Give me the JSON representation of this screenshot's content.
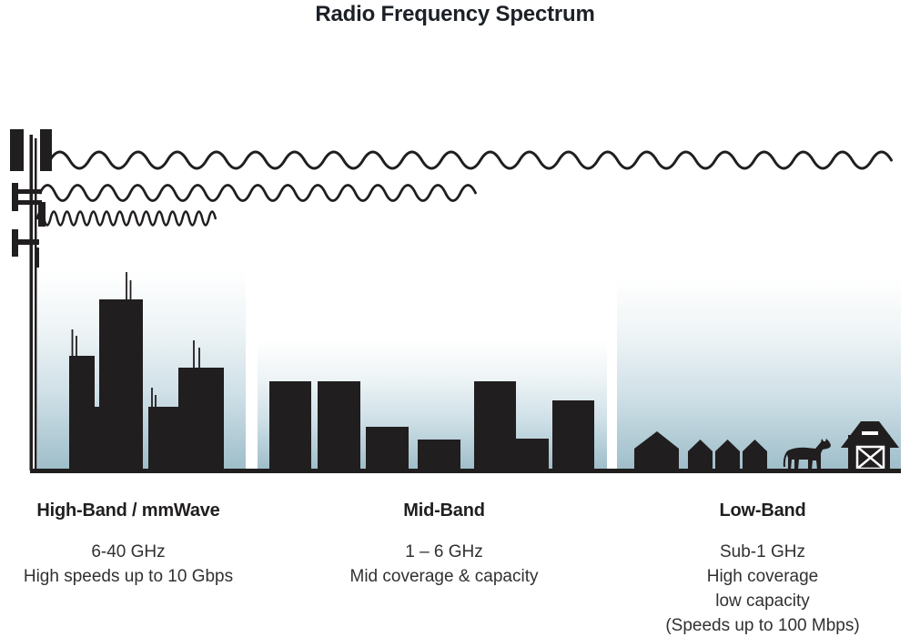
{
  "title": "Radio Frequency Spectrum",
  "bands": [
    {
      "name": "High-Band / mmWave",
      "lines": [
        "6-40 GHz",
        "High speeds up to 10 Gbps"
      ],
      "scene": "dense-city-skyscrapers",
      "wave": "short-wavelength-short-reach"
    },
    {
      "name": "Mid-Band",
      "lines": [
        "1 – 6 GHz",
        "Mid coverage & capacity"
      ],
      "scene": "mid-rise-buildings",
      "wave": "medium-wavelength-medium-reach"
    },
    {
      "name": "Low-Band",
      "lines": [
        "Sub-1 GHz",
        "High coverage",
        "low capacity",
        "(Speeds up to 100 Mbps)"
      ],
      "scene": "rural-houses-cow-barn",
      "wave": "long-wavelength-long-reach"
    }
  ],
  "icons": [
    "cell-tower-icon",
    "low-band-wave-icon",
    "mid-band-wave-icon",
    "high-band-wave-icon",
    "high-band-skyline-icon",
    "mid-band-skyline-icon",
    "house-icon",
    "cow-icon",
    "barn-icon"
  ],
  "colors": {
    "ink": "#211e1f",
    "sky_bottom": "#9fbeca",
    "sky_mid": "#d3e2e8",
    "background": "#ffffff"
  }
}
